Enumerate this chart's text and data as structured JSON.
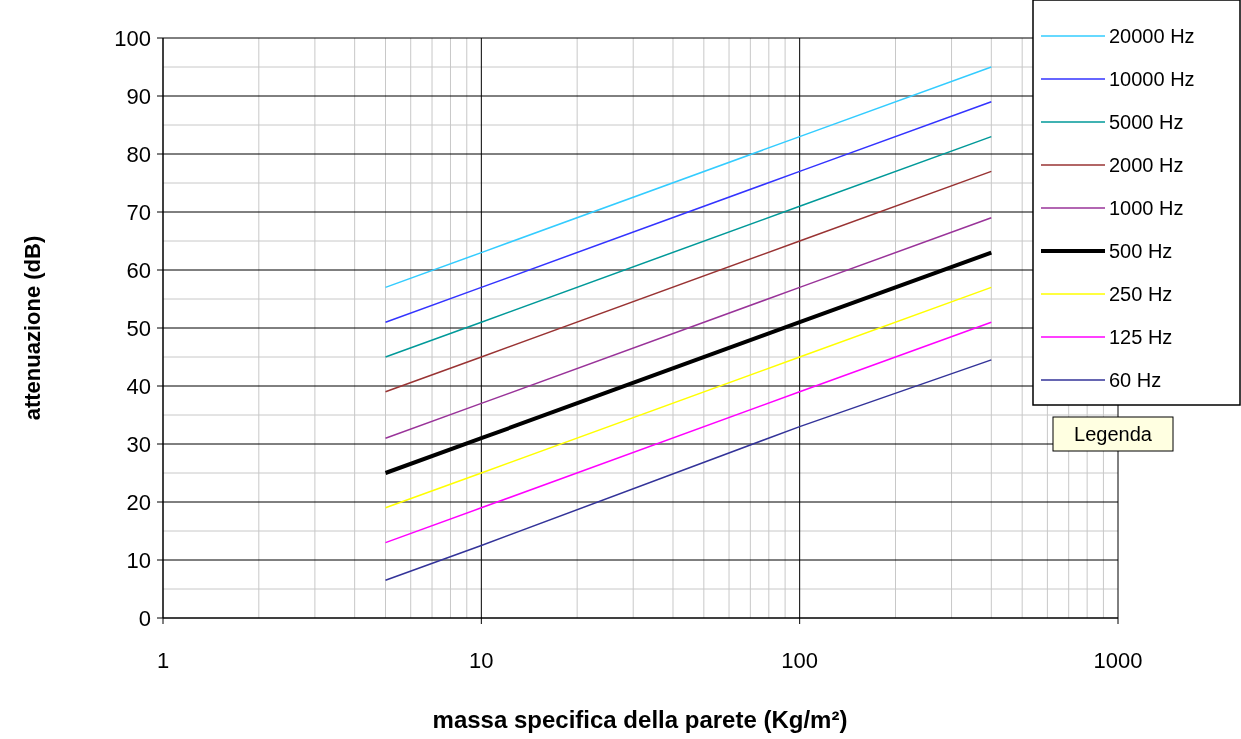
{
  "chart_data": {
    "type": "line",
    "xlabel": "massa specifica della parete (Kg/m²)",
    "ylabel": "attenuazione (dB)",
    "log": "x",
    "xlim": [
      1,
      1000
    ],
    "xticks": [
      1,
      10,
      100,
      1000
    ],
    "ylim": [
      0,
      100
    ],
    "yticks": [
      0,
      10,
      20,
      30,
      40,
      50,
      60,
      70,
      80,
      90,
      100
    ],
    "grid": true,
    "legend": "right",
    "marker": "none",
    "line_style": "solid",
    "annotations": [
      "Legenda"
    ],
    "x": [
      5,
      10,
      100,
      400
    ],
    "series": [
      {
        "name": "20000 Hz",
        "color": "#33ccff",
        "values": [
          57,
          63,
          83,
          95
        ]
      },
      {
        "name": "10000 Hz",
        "color": "#3333ff",
        "values": [
          51,
          57,
          77,
          89
        ]
      },
      {
        "name": "5000 Hz",
        "color": "#009999",
        "values": [
          45,
          51,
          71,
          83
        ]
      },
      {
        "name": "2000 Hz",
        "color": "#993333",
        "values": [
          39,
          45,
          65,
          77
        ]
      },
      {
        "name": "1000 Hz",
        "color": "#993399",
        "values": [
          31,
          37,
          57,
          69
        ]
      },
      {
        "name": "500 Hz",
        "color": "#000000",
        "values": [
          25,
          31,
          51,
          63
        ]
      },
      {
        "name": "250 Hz",
        "color": "#ffff00",
        "values": [
          19,
          25,
          45,
          57
        ]
      },
      {
        "name": "125 Hz",
        "color": "#ff00ff",
        "values": [
          13,
          19,
          39,
          51
        ]
      },
      {
        "name": "60 Hz",
        "color": "#333399",
        "values": [
          6.5,
          12.5,
          33,
          44.5
        ]
      }
    ]
  }
}
